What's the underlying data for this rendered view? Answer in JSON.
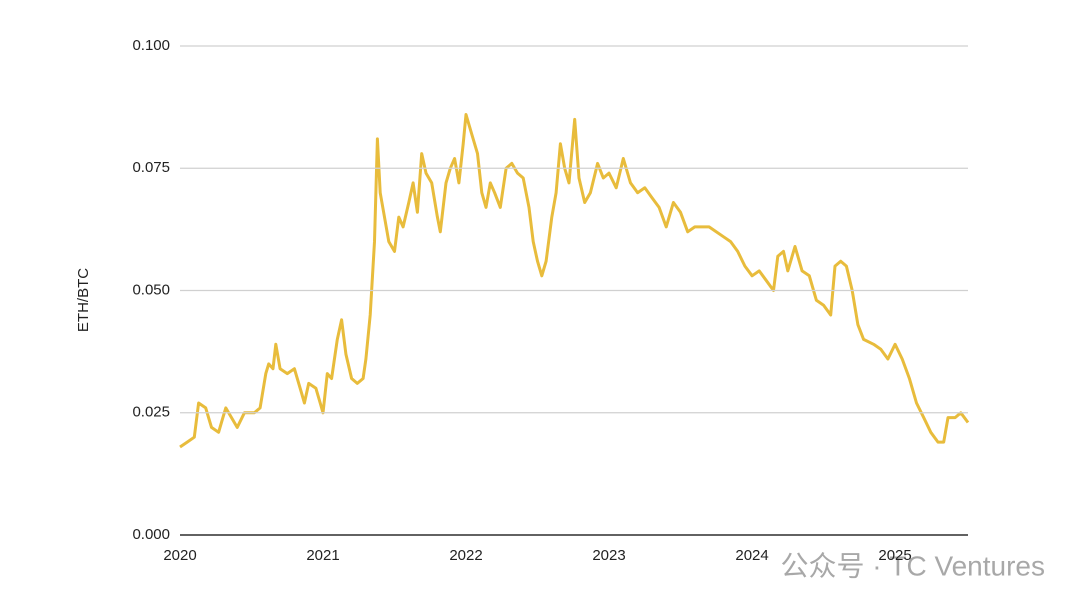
{
  "chart_data": {
    "type": "line",
    "y_label": "ETH/BTC",
    "watermark": "公众号 · TC Ventures",
    "xlim": [
      2020,
      2025.51
    ],
    "xticks": [
      2020,
      2021,
      2022,
      2023,
      2024,
      2025
    ],
    "ylim": [
      0,
      0.1
    ],
    "yticks": [
      {
        "value": 0,
        "label": "0.000"
      },
      {
        "value": 0.025,
        "label": "0.025"
      },
      {
        "value": 0.05,
        "label": "0.050"
      },
      {
        "value": 0.075,
        "label": "0.075"
      },
      {
        "value": 0.1,
        "label": "0.100"
      }
    ],
    "grid": true,
    "series": [
      {
        "name": "ETH/BTC",
        "color": "#e8bc3c",
        "x": [
          2020.0,
          2020.05,
          2020.1,
          2020.13,
          2020.18,
          2020.22,
          2020.27,
          2020.3,
          2020.32,
          2020.36,
          2020.4,
          2020.45,
          2020.52,
          2020.56,
          2020.6,
          2020.62,
          2020.65,
          2020.67,
          2020.7,
          2020.75,
          2020.8,
          2020.85,
          2020.87,
          2020.9,
          2020.95,
          2020.98,
          2021.0,
          2021.03,
          2021.06,
          2021.1,
          2021.13,
          2021.16,
          2021.2,
          2021.24,
          2021.28,
          2021.3,
          2021.33,
          2021.36,
          2021.38,
          2021.4,
          2021.43,
          2021.46,
          2021.5,
          2021.53,
          2021.56,
          2021.6,
          2021.63,
          2021.66,
          2021.69,
          2021.72,
          2021.76,
          2021.8,
          2021.82,
          2021.86,
          2021.89,
          2021.92,
          2021.95,
          2021.98,
          2022.0,
          2022.04,
          2022.08,
          2022.11,
          2022.14,
          2022.17,
          2022.2,
          2022.24,
          2022.28,
          2022.32,
          2022.36,
          2022.4,
          2022.44,
          2022.47,
          2022.5,
          2022.53,
          2022.56,
          2022.6,
          2022.63,
          2022.66,
          2022.69,
          2022.72,
          2022.76,
          2022.79,
          2022.83,
          2022.87,
          2022.92,
          2022.96,
          2023.0,
          2023.05,
          2023.1,
          2023.15,
          2023.2,
          2023.25,
          2023.3,
          2023.35,
          2023.4,
          2023.45,
          2023.5,
          2023.55,
          2023.6,
          2023.7,
          2023.8,
          2023.85,
          2023.9,
          2023.95,
          2024.0,
          2024.05,
          2024.1,
          2024.15,
          2024.18,
          2024.22,
          2024.25,
          2024.3,
          2024.35,
          2024.4,
          2024.45,
          2024.5,
          2024.55,
          2024.58,
          2024.62,
          2024.66,
          2024.7,
          2024.74,
          2024.78,
          2024.85,
          2024.9,
          2024.95,
          2025.0,
          2025.05,
          2025.1,
          2025.15,
          2025.2,
          2025.25,
          2025.3,
          2025.34,
          2025.37,
          2025.42,
          2025.46,
          2025.51
        ],
        "values": [
          0.018,
          0.019,
          0.02,
          0.027,
          0.026,
          0.022,
          0.021,
          0.024,
          0.026,
          0.024,
          0.022,
          0.025,
          0.025,
          0.026,
          0.033,
          0.035,
          0.034,
          0.039,
          0.034,
          0.033,
          0.034,
          0.029,
          0.027,
          0.031,
          0.03,
          0.027,
          0.025,
          0.033,
          0.032,
          0.04,
          0.044,
          0.037,
          0.032,
          0.031,
          0.032,
          0.036,
          0.045,
          0.06,
          0.081,
          0.07,
          0.065,
          0.06,
          0.058,
          0.065,
          0.063,
          0.068,
          0.072,
          0.066,
          0.078,
          0.074,
          0.072,
          0.065,
          0.062,
          0.072,
          0.075,
          0.077,
          0.072,
          0.08,
          0.086,
          0.082,
          0.078,
          0.07,
          0.067,
          0.072,
          0.07,
          0.067,
          0.075,
          0.076,
          0.074,
          0.073,
          0.067,
          0.06,
          0.056,
          0.053,
          0.056,
          0.065,
          0.07,
          0.08,
          0.075,
          0.072,
          0.085,
          0.073,
          0.068,
          0.07,
          0.076,
          0.073,
          0.074,
          0.071,
          0.077,
          0.072,
          0.07,
          0.071,
          0.069,
          0.067,
          0.063,
          0.068,
          0.066,
          0.062,
          0.063,
          0.063,
          0.061,
          0.06,
          0.058,
          0.055,
          0.053,
          0.054,
          0.052,
          0.05,
          0.057,
          0.058,
          0.054,
          0.059,
          0.054,
          0.053,
          0.048,
          0.047,
          0.045,
          0.055,
          0.056,
          0.055,
          0.05,
          0.043,
          0.04,
          0.039,
          0.038,
          0.036,
          0.039,
          0.036,
          0.032,
          0.027,
          0.024,
          0.021,
          0.019,
          0.019,
          0.024,
          0.024,
          0.025,
          0.023
        ]
      }
    ]
  }
}
